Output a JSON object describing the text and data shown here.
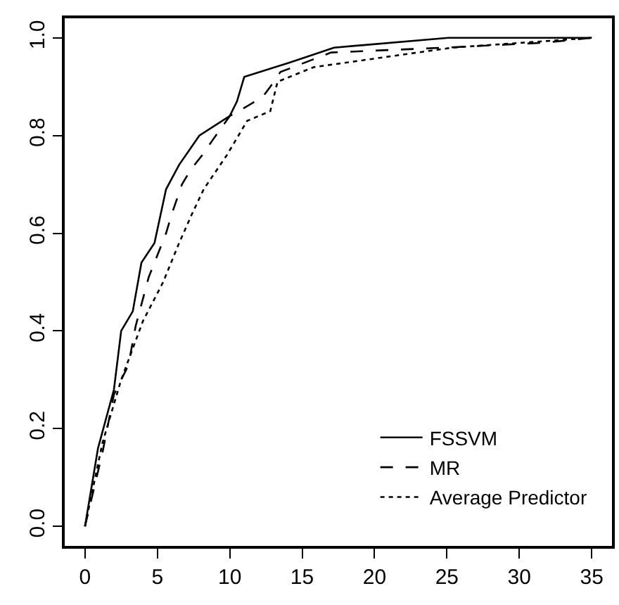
{
  "chart_data": {
    "type": "line",
    "series": [
      {
        "name": "FSSVM",
        "color": "#000000",
        "line_style": "solid",
        "x": [
          0,
          0.9,
          2.0,
          2.5,
          3.3,
          3.9,
          4.8,
          5.6,
          6.5,
          7.9,
          10,
          10.5,
          11.0,
          14.2,
          17.2,
          25.1,
          35
        ],
        "values": [
          0,
          0.16,
          0.28,
          0.4,
          0.44,
          0.54,
          0.58,
          0.69,
          0.74,
          0.8,
          0.84,
          0.87,
          0.92,
          0.95,
          0.98,
          1.0,
          1.0
        ]
      },
      {
        "name": "MR",
        "color": "#000000",
        "line_style": "dashed",
        "x": [
          0,
          1.2,
          2.0,
          3.0,
          3.5,
          4.4,
          5.6,
          6.0,
          6.7,
          7.3,
          8.1,
          8.8,
          10,
          11.2,
          12.3,
          12.8,
          13.5,
          17,
          24.9,
          31.7,
          35
        ],
        "values": [
          0,
          0.15,
          0.27,
          0.33,
          0.41,
          0.51,
          0.6,
          0.64,
          0.7,
          0.73,
          0.76,
          0.79,
          0.84,
          0.86,
          0.88,
          0.9,
          0.93,
          0.97,
          0.98,
          0.99,
          1.0
        ]
      },
      {
        "name": "Average Predictor",
        "color": "#000000",
        "line_style": "dotted",
        "x": [
          0,
          1.2,
          2.5,
          4.0,
          5.4,
          6.5,
          7.4,
          8.2,
          9.8,
          11.2,
          12.8,
          13.3,
          15.8,
          25.4,
          35
        ],
        "values": [
          0,
          0.17,
          0.3,
          0.42,
          0.5,
          0.58,
          0.64,
          0.69,
          0.76,
          0.83,
          0.85,
          0.91,
          0.94,
          0.98,
          1.0
        ]
      }
    ],
    "xlim": [
      -1.4,
      36.4
    ],
    "xticks": [
      0,
      5,
      10,
      15,
      20,
      25,
      30,
      35
    ],
    "ylim": [
      -0.04,
      1.04
    ],
    "yticks": [
      {
        "value": 0,
        "label": "0.0"
      },
      {
        "value": 0.2,
        "label": "0.2"
      },
      {
        "value": 0.4,
        "label": "0.4"
      },
      {
        "value": 0.6,
        "label": "0.6"
      },
      {
        "value": 0.8,
        "label": "0.8"
      },
      {
        "value": 1,
        "label": "1.0"
      }
    ],
    "legend": "bottom right",
    "marker": "none"
  }
}
